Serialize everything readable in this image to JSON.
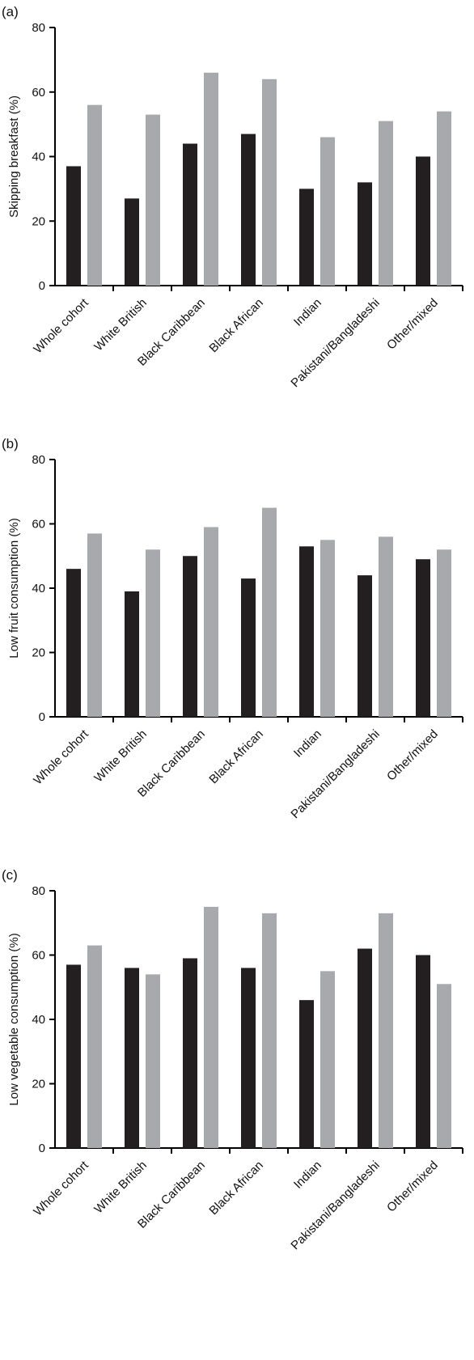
{
  "colors": {
    "series1": "#231f20",
    "series2": "#a7a9ac",
    "axis": "#000000"
  },
  "chart_data": [
    {
      "type": "bar",
      "panel": "(a)",
      "ylabel": "Skipping breakfast (%)",
      "ylim": [
        0,
        80
      ],
      "yticks": [
        0,
        20,
        40,
        60,
        80
      ],
      "categories": [
        "Whole cohort",
        "White British",
        "Black Caribbean",
        "Black African",
        "Indian",
        "Pakistani/Bangladeshi",
        "Other/mixed"
      ],
      "series": [
        {
          "values": [
            37,
            27,
            44,
            47,
            30,
            32,
            40
          ]
        },
        {
          "values": [
            56,
            53,
            66,
            64,
            46,
            51,
            54
          ]
        }
      ],
      "grid": false,
      "legend": "none"
    },
    {
      "type": "bar",
      "panel": "(b)",
      "ylabel": "Low fruit consumption (%)",
      "ylim": [
        0,
        80
      ],
      "yticks": [
        0,
        20,
        40,
        60,
        80
      ],
      "categories": [
        "Whole cohort",
        "White British",
        "Black Caribbean",
        "Black African",
        "Indian",
        "Pakistani/Bangladeshi",
        "Other/mixed"
      ],
      "series": [
        {
          "values": [
            46,
            39,
            50,
            43,
            53,
            44,
            49
          ]
        },
        {
          "values": [
            57,
            52,
            59,
            65,
            55,
            56,
            52
          ]
        }
      ],
      "grid": false,
      "legend": "none"
    },
    {
      "type": "bar",
      "panel": "(c)",
      "ylabel": "Low vegetable consumption (%)",
      "ylim": [
        0,
        80
      ],
      "yticks": [
        0,
        20,
        40,
        60,
        80
      ],
      "categories": [
        "Whole cohort",
        "White British",
        "Black Caribbean",
        "Black African",
        "Indian",
        "Pakistani/Bangladeshi",
        "Other/mixed"
      ],
      "series": [
        {
          "values": [
            57,
            56,
            59,
            56,
            46,
            62,
            60
          ]
        },
        {
          "values": [
            63,
            54,
            75,
            73,
            55,
            73,
            51
          ]
        }
      ],
      "grid": false,
      "legend": "none"
    }
  ]
}
